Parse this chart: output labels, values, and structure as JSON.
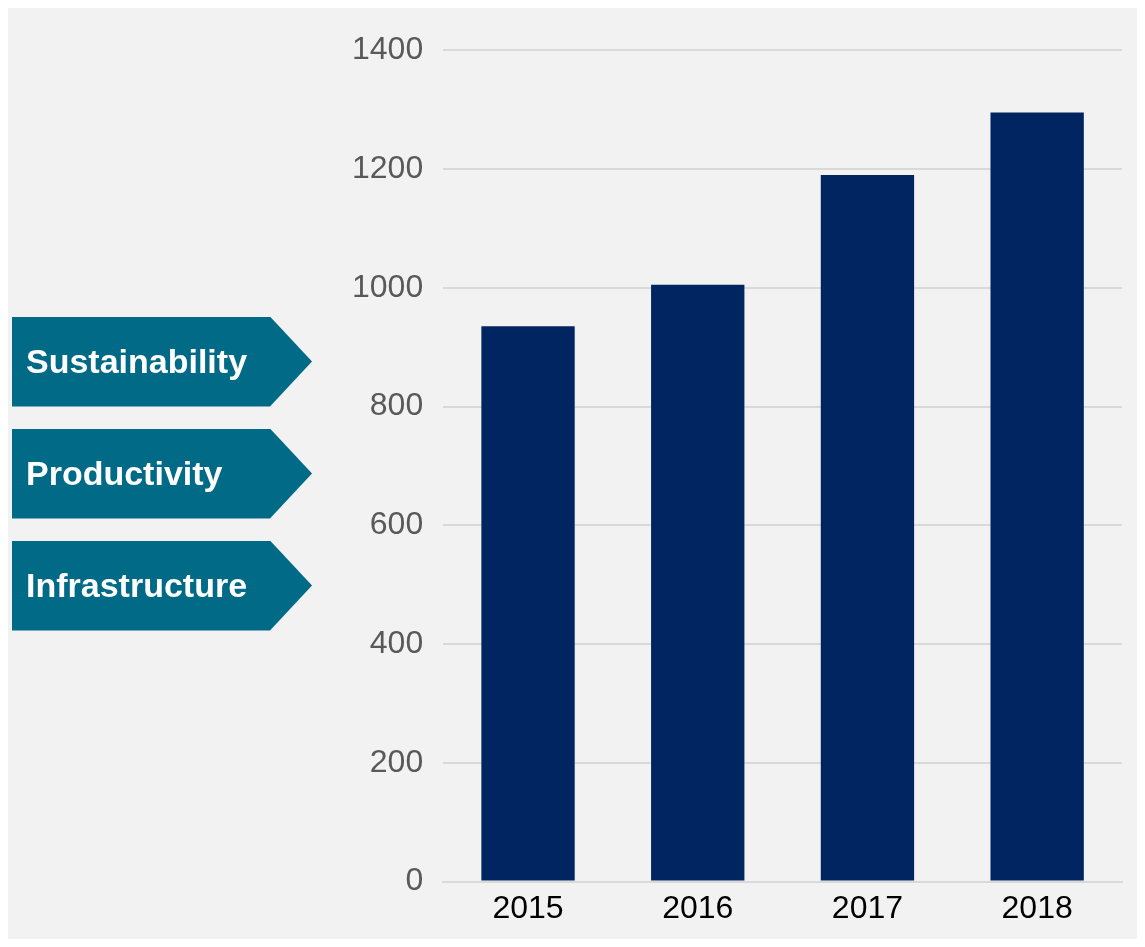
{
  "chart_data": {
    "type": "bar",
    "categories": [
      "2015",
      "2016",
      "2017",
      "2018"
    ],
    "values": [
      935,
      1005,
      1190,
      1295
    ],
    "color": "#002561",
    "ylim": [
      0,
      1400
    ],
    "yticks": [
      0,
      200,
      400,
      600,
      800,
      1000,
      1200,
      1400
    ],
    "grid": "y",
    "legend": false,
    "annotations": [
      "Sustainability",
      "Productivity",
      "Infrastructure"
    ]
  }
}
